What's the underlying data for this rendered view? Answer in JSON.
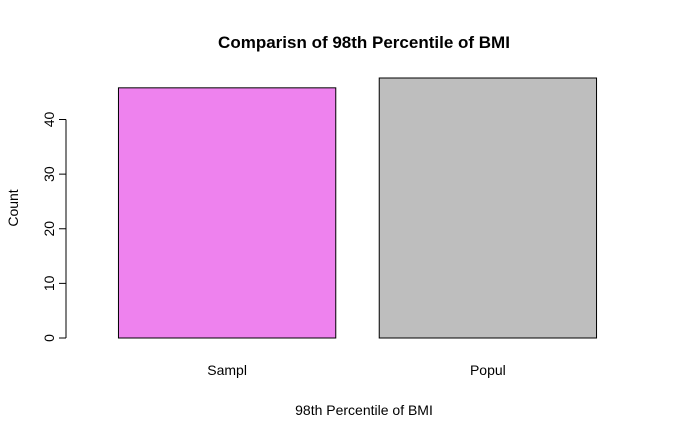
{
  "chart_data": {
    "type": "bar",
    "title": "Comparisn of 98th Percentile of BMI",
    "xlabel": "98th Percentile of BMI",
    "ylabel": "Count",
    "categories": [
      "Sampl",
      "Popul"
    ],
    "values": [
      45.8,
      47.6
    ],
    "colors": [
      "#ee82ee",
      "#bebebe"
    ],
    "yticks": [
      0,
      10,
      20,
      30,
      40
    ],
    "ylim": [
      0,
      47.6
    ],
    "grid": false,
    "legend": "none"
  }
}
